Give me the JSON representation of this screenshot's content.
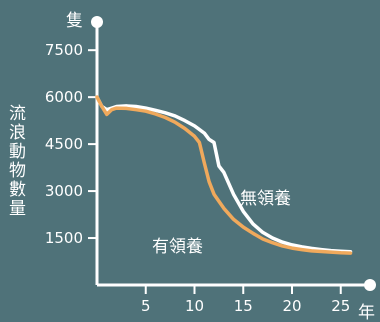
{
  "chart_data": {
    "type": "line",
    "y_unit": "隻",
    "x_unit": "年",
    "ylabel": "流浪動物數量",
    "x_ticks": [
      5,
      10,
      15,
      20,
      25
    ],
    "y_ticks": [
      1500,
      3000,
      4500,
      6000,
      7500
    ],
    "xlim": [
      0,
      28
    ],
    "ylim": [
      0,
      8400
    ],
    "grid": false,
    "series": [
      {
        "name": "無領養",
        "color": "#ffffff",
        "x": [
          0,
          0.5,
          1,
          1.5,
          2,
          3,
          4,
          5,
          6,
          7,
          8,
          9,
          10,
          11,
          11.5,
          12,
          12.5,
          13,
          14,
          15,
          16,
          17,
          18,
          19,
          20,
          21,
          22,
          23,
          24,
          25,
          26
        ],
        "y": [
          6000,
          5700,
          5600,
          5650,
          5700,
          5720,
          5700,
          5650,
          5580,
          5500,
          5400,
          5250,
          5080,
          4850,
          4650,
          4550,
          3800,
          3600,
          2900,
          2350,
          1950,
          1680,
          1500,
          1370,
          1280,
          1220,
          1170,
          1130,
          1100,
          1080,
          1060
        ]
      },
      {
        "name": "有領養",
        "color": "#f0a95c",
        "x": [
          0,
          0.5,
          1,
          1.5,
          2,
          3,
          4,
          5,
          6,
          7,
          8,
          9,
          10,
          10.5,
          11,
          11.5,
          12,
          13,
          14,
          15,
          16,
          17,
          18,
          19,
          20,
          21,
          22,
          23,
          24,
          25,
          26
        ],
        "y": [
          6000,
          5700,
          5450,
          5600,
          5650,
          5640,
          5600,
          5550,
          5460,
          5350,
          5200,
          5000,
          4750,
          4550,
          3900,
          3300,
          2900,
          2450,
          2100,
          1850,
          1650,
          1470,
          1350,
          1250,
          1180,
          1130,
          1090,
          1070,
          1050,
          1030,
          1020
        ]
      }
    ]
  }
}
